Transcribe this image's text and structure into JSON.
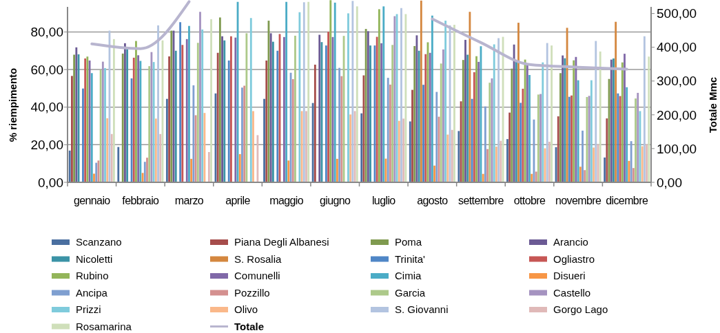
{
  "chart_data": {
    "type": "bar",
    "ylabel": "% riempimento",
    "y2label": "Totale Mmc",
    "categories": [
      "gennaio",
      "febbraio",
      "marzo",
      "aprile",
      "maggio",
      "giugno",
      "luglio",
      "agosto",
      "settembre",
      "ottobre",
      "novembre",
      "dicembre"
    ],
    "ylim": [
      0,
      97
    ],
    "yticks": [
      {
        "value": 0,
        "label": "0,00"
      },
      {
        "value": 20,
        "label": "20,00"
      },
      {
        "value": 40,
        "label": "40,00"
      },
      {
        "value": 60,
        "label": "60,00"
      },
      {
        "value": 80,
        "label": "80,00"
      }
    ],
    "y2lim": [
      0,
      540
    ],
    "y2ticks": [
      {
        "value": 0,
        "label": "0,00"
      },
      {
        "value": 100,
        "label": "100,00"
      },
      {
        "value": 200,
        "label": "200,00"
      },
      {
        "value": 300,
        "label": "300,00"
      },
      {
        "value": 400,
        "label": "400,00"
      },
      {
        "value": 500,
        "label": "500,00"
      }
    ],
    "grid": "y",
    "legend": "bottom",
    "series": [
      {
        "name": "Scanzano",
        "color": "#4a6fa0",
        "values": [
          16.9,
          18.8,
          44.4,
          47.3,
          44.4,
          42.2,
          36.7,
          32.4,
          27.3,
          23,
          18.7,
          13.2
        ]
      },
      {
        "name": "Piana Degli Albanesi",
        "color": "#a64d4b",
        "values": [
          56.6,
          null,
          67,
          68.9,
          64.8,
          62.6,
          56.9,
          49.2,
          43.1,
          37.1,
          35.1,
          34
        ]
      },
      {
        "name": "Poma",
        "color": "#7f9a4f",
        "values": [
          67.9,
          68.5,
          80.7,
          87.7,
          86,
          null,
          81.6,
          72.5,
          65.1,
          60.5,
          58.1,
          55
        ]
      },
      {
        "name": "Arancio",
        "color": "#6b5a94",
        "values": [
          71.8,
          74,
          80.7,
          77.7,
          79.3,
          78.5,
          80.4,
          78.2,
          75.8,
          73.3,
          67.5,
          65.3
        ]
      },
      {
        "name": "Nicoletti",
        "color": "#3b93a6",
        "values": [
          68.1,
          71,
          70,
          75.5,
          74.8,
          74.6,
          72.8,
          70,
          67.9,
          65.1,
          66,
          65.9
        ]
      },
      {
        "name": "S. Rosalia",
        "color": "#d4873f",
        "values": [
          null,
          null,
          null,
          null,
          null,
          null,
          null,
          96.7,
          90.7,
          84.9,
          82.2,
          85.4
        ]
      },
      {
        "name": "Trinita'",
        "color": "#4f86c6",
        "values": [
          49.9,
          55.3,
          85.2,
          64.8,
          70,
          72.8,
          72.8,
          51.9,
          44.4,
          42.3,
          45.5,
          47.3
        ]
      },
      {
        "name": "Ogliastro",
        "color": "#c65654",
        "values": [
          65.9,
          66.3,
          73.1,
          77.7,
          78.9,
          80.1,
          77.4,
          68.2,
          58.6,
          49.8,
          46.2,
          45.9
        ]
      },
      {
        "name": "Rubino",
        "color": "#93b55a",
        "values": [
          66.9,
          75.2,
          null,
          null,
          null,
          96.9,
          92.1,
          74.5,
          67.1,
          65.3,
          64.9,
          63.8
        ]
      },
      {
        "name": "Comunelli",
        "color": "#8068a8",
        "values": [
          64.8,
          67.6,
          76.2,
          77,
          77.3,
          77.3,
          74,
          68.9,
          64.1,
          63.1,
          66.7,
          68.4
        ]
      },
      {
        "name": "Cimia",
        "color": "#4bacc6",
        "values": [
          58.1,
          64.6,
          83.2,
          96,
          96,
          95.6,
          93.6,
          88.7,
          72.4,
          57.1,
          54.3,
          50.6
        ]
      },
      {
        "name": "Disueri",
        "color": "#f79646",
        "values": [
          4.6,
          5,
          12.5,
          15,
          11.6,
          12.5,
          12.6,
          8.9,
          4.5,
          4.5,
          8.3,
          11.4
        ]
      },
      {
        "name": "Ancipa",
        "color": "#7f9fd0",
        "values": [
          10.4,
          10.9,
          51.6,
          50.4,
          58.3,
          60.9,
          55.6,
          48.1,
          40.4,
          33.4,
          27.5,
          21.9
        ]
      },
      {
        "name": "Pozzillo",
        "color": "#d4908f",
        "values": [
          11.6,
          13.1,
          35.7,
          51.4,
          54.9,
          56.5,
          52,
          34.9,
          17.7,
          5.7,
          6.5,
          7.6
        ]
      },
      {
        "name": "Garcia",
        "color": "#adc98a",
        "values": [
          59.9,
          61.8,
          74.2,
          79.3,
          78,
          77.9,
          73.1,
          63.2,
          53,
          46.7,
          45.4,
          44.6
        ]
      },
      {
        "name": "Castello",
        "color": "#a593c0",
        "values": [
          64.2,
          69.3,
          90.7,
          null,
          null,
          null,
          88.4,
          70.7,
          55.3,
          47,
          46,
          47.6
        ]
      },
      {
        "name": "Prizzi",
        "color": "#7fcbdc",
        "values": [
          60.8,
          64,
          81.3,
          87.4,
          90.5,
          89.9,
          89.5,
          86,
          73.4,
          63.8,
          54.3,
          37.9
        ]
      },
      {
        "name": "Olivo",
        "color": "#fab88a",
        "values": [
          34.1,
          33.9,
          36.9,
          37.9,
          37.9,
          36.1,
          32.7,
          25.4,
          19,
          18.1,
          18.5,
          19.2
        ]
      },
      {
        "name": "S. Giovanni",
        "color": "#b3c4e0",
        "values": [
          80.7,
          83.5,
          null,
          null,
          95.8,
          96.5,
          92.7,
          83.5,
          76.7,
          74.1,
          75.2,
          77.7
        ]
      },
      {
        "name": "Gorgo Lago",
        "color": "#e0b9b8",
        "values": [
          25.7,
          25.7,
          16.1,
          25.1,
          37.9,
          37.9,
          33.9,
          27.9,
          22.1,
          21.6,
          20.2,
          20.2
        ]
      },
      {
        "name": "Rosamarina",
        "color": "#cfdfba",
        "values": [
          76.2,
          75.5,
          86.8,
          null,
          96,
          93.6,
          89.5,
          83.8,
          77.4,
          72.8,
          69.6,
          66.9
        ]
      },
      {
        "name": "Totale",
        "type": "line",
        "axis": "y2",
        "color": "#b8b5cf",
        "values": [
          410,
          396,
          535,
          null,
          null,
          null,
          null,
          484,
          414,
          349,
          341,
          335
        ]
      }
    ]
  }
}
